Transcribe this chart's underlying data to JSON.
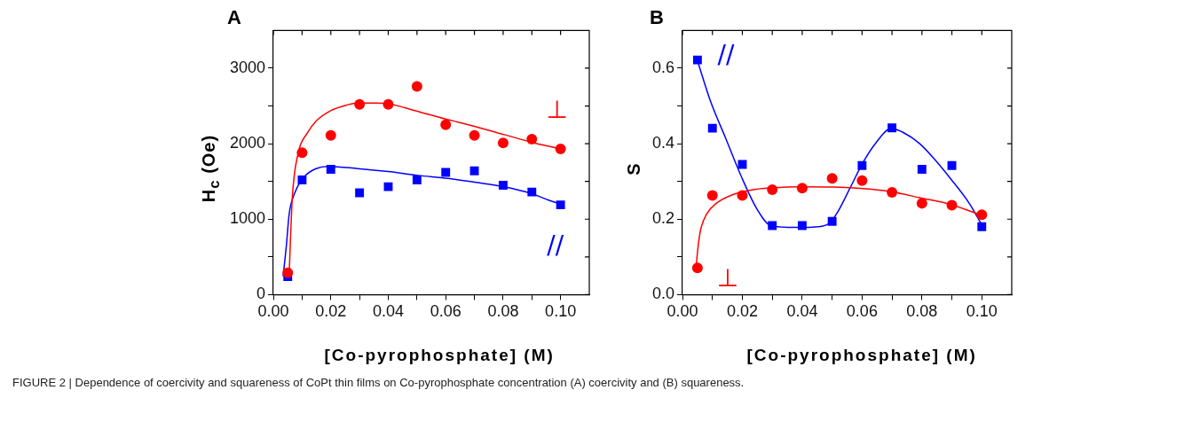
{
  "chart_data": [
    {
      "type": "scatter",
      "title": "A",
      "xlabel": "[Co-pyrophosphate] (M)",
      "ylabel": "H$_{c}$ (Oe)",
      "xlim": [
        0,
        0.11
      ],
      "ylim": [
        0,
        3500
      ],
      "xticks": [
        {
          "value": 0,
          "label": "0.00"
        },
        {
          "value": 0.01,
          "label": null
        },
        {
          "value": 0.02,
          "label": "0.02"
        },
        {
          "value": 0.03,
          "label": null
        },
        {
          "value": 0.04,
          "label": "0.04"
        },
        {
          "value": 0.05,
          "label": null
        },
        {
          "value": 0.06,
          "label": "0.06"
        },
        {
          "value": 0.07,
          "label": null
        },
        {
          "value": 0.08,
          "label": "0.08"
        },
        {
          "value": 0.09,
          "label": null
        },
        {
          "value": 0.1,
          "label": "0.10"
        }
      ],
      "yticks": [
        0,
        {
          "value": 500,
          "label": null
        },
        1000,
        {
          "value": 1500,
          "label": null
        },
        2000,
        {
          "value": 2500,
          "label": null
        },
        3000
      ],
      "grid": false,
      "legend": false,
      "series": [
        {
          "name": "⊥",
          "marker": "circle",
          "color": "#ff0000",
          "x": [
            0.005,
            0.01,
            0.02,
            0.03,
            0.04,
            0.05,
            0.06,
            0.07,
            0.08,
            0.09,
            0.1
          ],
          "values": [
            290,
            1880,
            2110,
            2520,
            2520,
            2760,
            2250,
            2110,
            2010,
            2060,
            1930
          ]
        },
        {
          "name": "//",
          "marker": "square",
          "color": "#0000ff",
          "x": [
            0.005,
            0.01,
            0.02,
            0.03,
            0.04,
            0.05,
            0.06,
            0.07,
            0.08,
            0.09,
            0.1
          ],
          "values": [
            240,
            1520,
            1660,
            1350,
            1430,
            1520,
            1620,
            1640,
            1450,
            1360,
            1190
          ]
        },
        {
          "type": "line",
          "marker": "none",
          "color": "#ff0000",
          "x": [
            0.0055,
            0.0066,
            0.0086,
            0.0118,
            0.0149,
            0.0201,
            0.0253,
            0.0294,
            0.0357,
            0.0399,
            0.0492,
            0.0596,
            0.07,
            0.0804,
            0.0898,
            0.1
          ],
          "values": [
            280,
            1290,
            1870,
            2140,
            2300,
            2440,
            2510,
            2540,
            2540,
            2530,
            2440,
            2330,
            2230,
            2120,
            2020,
            1930
          ]
        },
        {
          "type": "line",
          "marker": "none",
          "color": "#0000ff",
          "x": [
            0.0034,
            0.0045,
            0.0055,
            0.0076,
            0.0107,
            0.0149,
            0.019,
            0.0294,
            0.04,
            0.0503,
            0.0607,
            0.07,
            0.0804,
            0.0898,
            0.096,
            0.1
          ],
          "values": [
            250,
            640,
            1070,
            1360,
            1560,
            1670,
            1700,
            1670,
            1630,
            1580,
            1540,
            1490,
            1430,
            1340,
            1250,
            1200
          ]
        }
      ],
      "annotations": [
        "FIGURE 2 | Dependence of coercivity and squareness of CoPt thin films on Co-pyrophosphate concentration (A) coercivity and (B) squareness."
      ]
    },
    {
      "type": "scatter",
      "title": "B",
      "xlabel": "[Co-pyrophosphate] (M)",
      "ylabel": "S",
      "xlim": [
        0,
        0.11
      ],
      "ylim": [
        0,
        0.7
      ],
      "xticks": [
        {
          "value": 0,
          "label": "0.00"
        },
        {
          "value": 0.01,
          "label": null
        },
        {
          "value": 0.02,
          "label": "0.02"
        },
        {
          "value": 0.03,
          "label": null
        },
        {
          "value": 0.04,
          "label": "0.04"
        },
        {
          "value": 0.05,
          "label": null
        },
        {
          "value": 0.06,
          "label": "0.06"
        },
        {
          "value": 0.07,
          "label": null
        },
        {
          "value": 0.08,
          "label": "0.08"
        },
        {
          "value": 0.09,
          "label": null
        },
        {
          "value": 0.1,
          "label": "0.10"
        }
      ],
      "yticks": [
        {
          "value": 0,
          "label": "0.0"
        },
        {
          "value": 0.1,
          "label": null
        },
        {
          "value": 0.2,
          "label": "0.2"
        },
        {
          "value": 0.3,
          "label": null
        },
        {
          "value": 0.4,
          "label": "0.4"
        },
        {
          "value": 0.5,
          "label": null
        },
        {
          "value": 0.6,
          "label": "0.6"
        }
      ],
      "grid": false,
      "legend": false,
      "series": [
        {
          "name": "⊥",
          "marker": "circle",
          "color": "#ff0000",
          "x": [
            0.005,
            0.01,
            0.02,
            0.03,
            0.04,
            0.05,
            0.06,
            0.07,
            0.08,
            0.09,
            0.1
          ],
          "values": [
            0.071,
            0.263,
            0.263,
            0.278,
            0.282,
            0.308,
            0.302,
            0.271,
            0.242,
            0.237,
            0.212
          ]
        },
        {
          "name": "//",
          "marker": "square",
          "color": "#0000ff",
          "x": [
            0.005,
            0.01,
            0.02,
            0.03,
            0.04,
            0.05,
            0.06,
            0.07,
            0.08,
            0.09,
            0.1
          ],
          "values": [
            0.622,
            0.441,
            0.345,
            0.183,
            0.183,
            0.194,
            0.342,
            0.442,
            0.332,
            0.342,
            0.18
          ]
        },
        {
          "type": "line",
          "marker": "none",
          "color": "#ff0000",
          "x": [
            0.0045,
            0.0052,
            0.006,
            0.0081,
            0.0113,
            0.0165,
            0.0228,
            0.03,
            0.0395,
            0.0499,
            0.0603,
            0.0697,
            0.0791,
            0.0896,
            0.1
          ],
          "values": [
            0.07,
            0.127,
            0.17,
            0.214,
            0.242,
            0.264,
            0.277,
            0.283,
            0.286,
            0.285,
            0.281,
            0.273,
            0.257,
            0.239,
            0.21
          ]
        },
        {
          "type": "line",
          "marker": "none",
          "color": "#0000ff",
          "x": [
            0.005,
            0.0092,
            0.0144,
            0.0196,
            0.0248,
            0.0295,
            0.0374,
            0.0436,
            0.0489,
            0.052,
            0.0562,
            0.0603,
            0.0645,
            0.0697,
            0.0739,
            0.0791,
            0.0843,
            0.0896,
            0.0958,
            0.1
          ],
          "values": [
            0.62,
            0.516,
            0.415,
            0.314,
            0.228,
            0.183,
            0.178,
            0.179,
            0.188,
            0.221,
            0.286,
            0.35,
            0.401,
            0.44,
            0.429,
            0.401,
            0.358,
            0.307,
            0.242,
            0.185
          ]
        }
      ]
    }
  ]
}
